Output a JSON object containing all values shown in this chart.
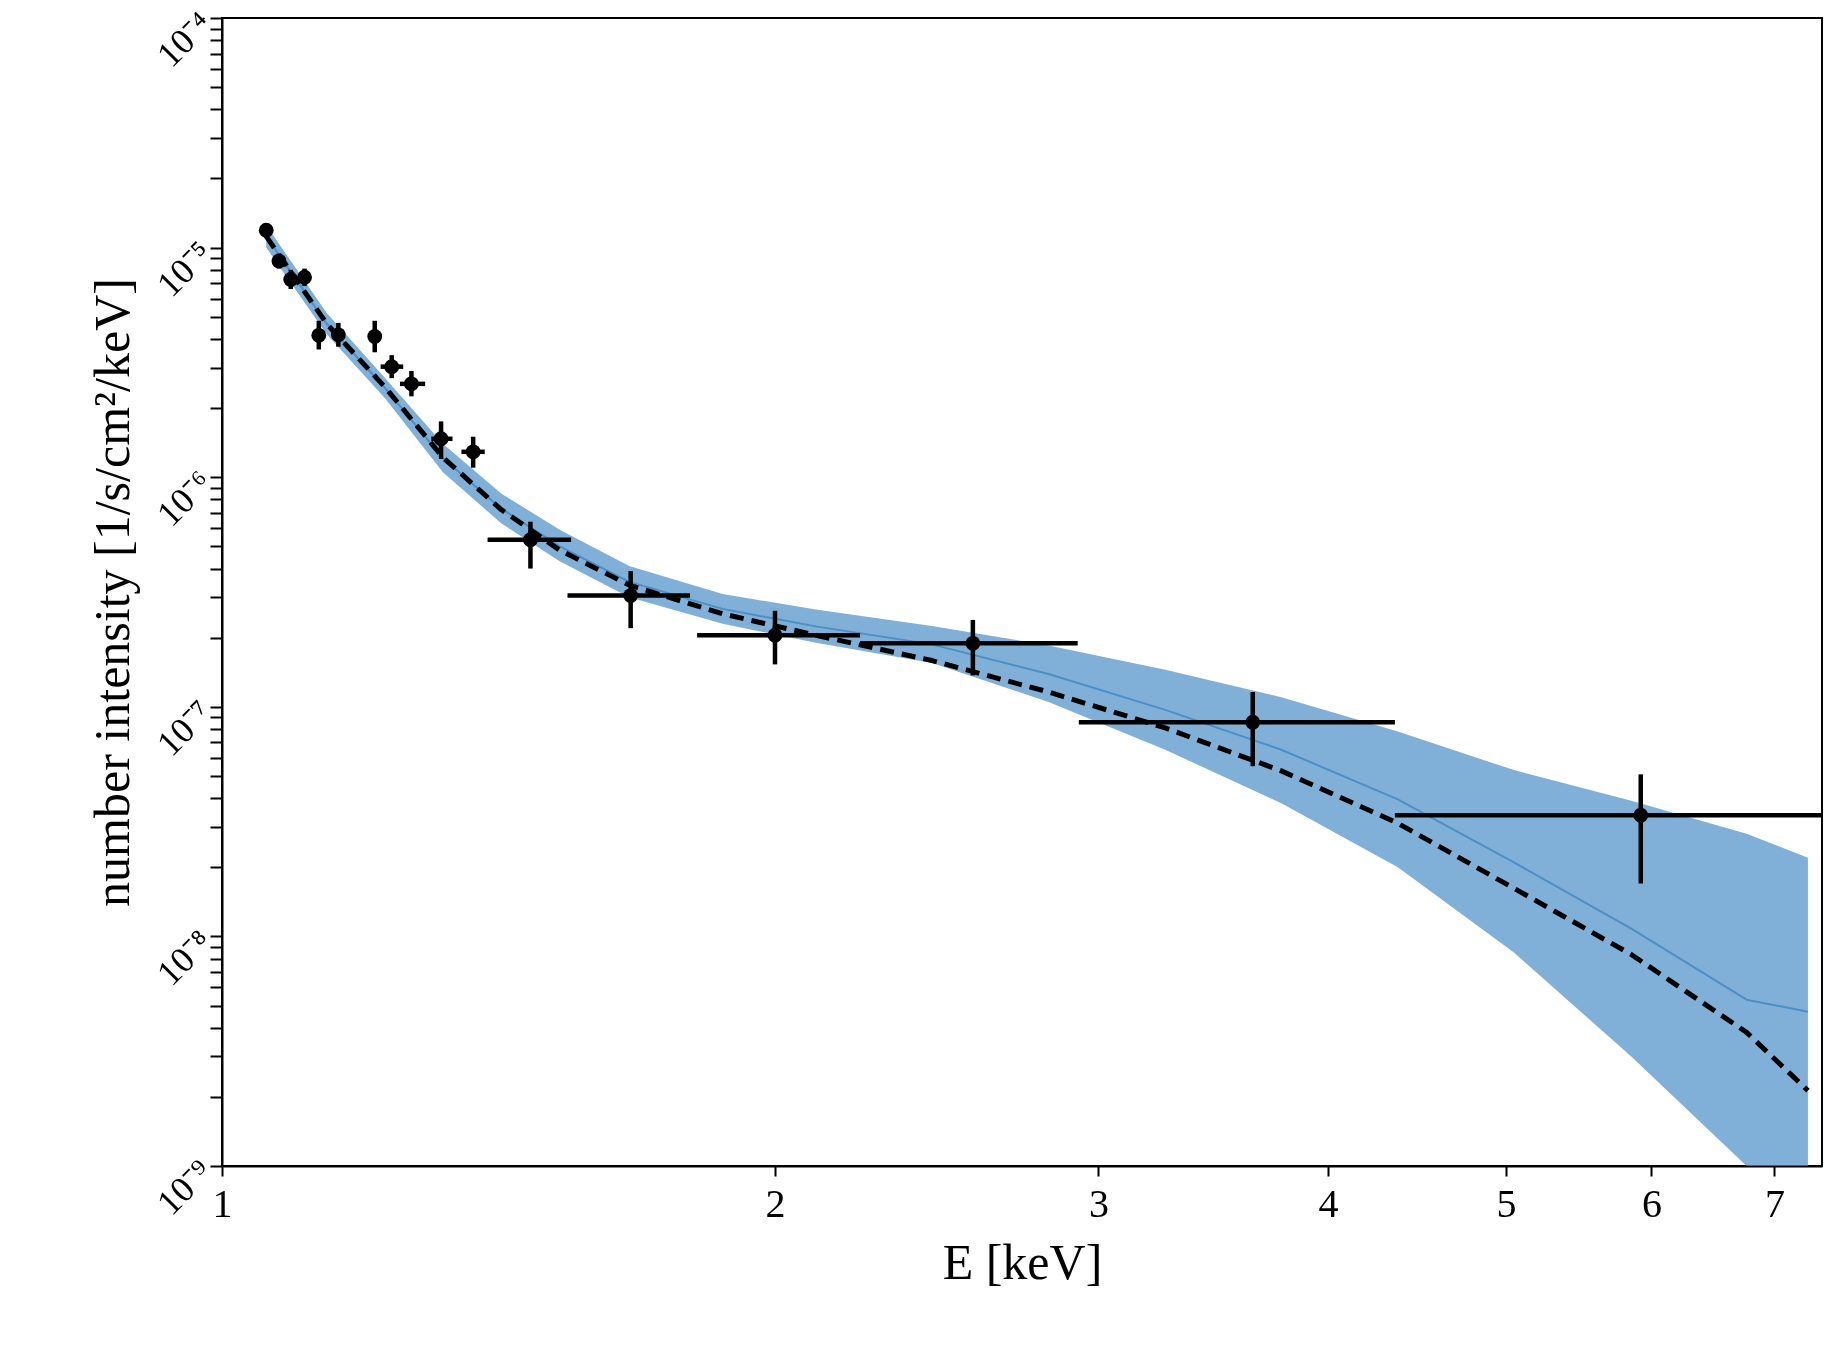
{
  "chart_data": {
    "type": "scatter",
    "xlabel": "E [keV]",
    "ylabel": "number intensity [1/s/cm²/keV]",
    "log": "xy",
    "xlim": [
      1,
      7.43
    ],
    "xticks": [
      1,
      2,
      3,
      4,
      5,
      6,
      7
    ],
    "ylim": [
      1e-09,
      0.0001
    ],
    "yticks": [
      {
        "value": 1e-09,
        "label": "10⁻⁹"
      },
      {
        "value": 2e-09,
        "label": null
      },
      {
        "value": 3e-09,
        "label": null
      },
      {
        "value": 4e-09,
        "label": null
      },
      {
        "value": 5e-09,
        "label": null
      },
      {
        "value": 6e-09,
        "label": null
      },
      {
        "value": 7e-09,
        "label": null
      },
      {
        "value": 8e-09,
        "label": null
      },
      {
        "value": 9e-09,
        "label": null
      },
      {
        "value": 1e-08,
        "label": "10⁻⁸"
      },
      {
        "value": 2e-08,
        "label": null
      },
      {
        "value": 3e-08,
        "label": null
      },
      {
        "value": 4e-08,
        "label": null
      },
      {
        "value": 5e-08,
        "label": null
      },
      {
        "value": 6e-08,
        "label": null
      },
      {
        "value": 7e-08,
        "label": null
      },
      {
        "value": 8e-08,
        "label": null
      },
      {
        "value": 9e-08,
        "label": null
      },
      {
        "value": 1e-07,
        "label": "10⁻⁷"
      },
      {
        "value": 2e-07,
        "label": null
      },
      {
        "value": 3e-07,
        "label": null
      },
      {
        "value": 4e-07,
        "label": null
      },
      {
        "value": 5e-07,
        "label": null
      },
      {
        "value": 6e-07,
        "label": null
      },
      {
        "value": 7e-07,
        "label": null
      },
      {
        "value": 8e-07,
        "label": null
      },
      {
        "value": 9e-07,
        "label": null
      },
      {
        "value": 1e-06,
        "label": "10⁻⁶"
      },
      {
        "value": 2e-06,
        "label": null
      },
      {
        "value": 3e-06,
        "label": null
      },
      {
        "value": 4e-06,
        "label": null
      },
      {
        "value": 5e-06,
        "label": null
      },
      {
        "value": 6e-06,
        "label": null
      },
      {
        "value": 7e-06,
        "label": null
      },
      {
        "value": 8e-06,
        "label": null
      },
      {
        "value": 9e-06,
        "label": null
      },
      {
        "value": 1e-05,
        "label": "10⁻⁵"
      },
      {
        "value": 2e-05,
        "label": null
      },
      {
        "value": 3e-05,
        "label": null
      },
      {
        "value": 4e-05,
        "label": null
      },
      {
        "value": 5e-05,
        "label": null
      },
      {
        "value": 6e-05,
        "label": null
      },
      {
        "value": 7e-05,
        "label": null
      },
      {
        "value": 8e-05,
        "label": null
      },
      {
        "value": 9e-05,
        "label": null
      },
      {
        "value": 0.0001,
        "label": "10⁻⁴"
      }
    ],
    "series": [
      {
        "type": "line",
        "color": "#4a8fc6",
        "x": [
          1.057,
          1.14,
          1.227,
          1.319,
          1.419,
          1.527,
          1.666,
          1.873,
          2.105,
          2.435,
          2.818,
          3.262,
          3.773,
          4.366,
          5.05,
          5.85,
          6.76,
          7.3
        ],
        "values": [
          1.12e-05,
          4.67e-06,
          2.44e-06,
          1.21e-06,
          7.3e-07,
          5e-07,
          3.5e-07,
          2.67e-07,
          2.24e-07,
          1.87e-07,
          1.39e-07,
          9.7e-08,
          6.5e-08,
          3.95e-08,
          2.1e-08,
          1.08e-08,
          5.3e-09,
          4.7e-09
        ],
        "lower": [
          1e-05,
          4.2e-06,
          2.2e-06,
          1.05e-06,
          6.3e-07,
          4.3e-07,
          3e-07,
          2.3e-07,
          1.9e-07,
          1.55e-07,
          1.05e-07,
          6.5e-08,
          3.8e-08,
          2e-08,
          8.5e-09,
          3e-09,
          1e-09,
          1e-09
        ],
        "upper": [
          1.25e-05,
          5.2e-06,
          2.7e-06,
          1.4e-06,
          8.5e-07,
          5.9e-07,
          4.1e-07,
          3.1e-07,
          2.65e-07,
          2.25e-07,
          1.85e-07,
          1.45e-07,
          1.1e-07,
          7.8e-08,
          5.3e-08,
          3.9e-08,
          2.8e-08,
          2.2e-08
        ]
      },
      {
        "type": "line",
        "color": "#000000",
        "line_style": "dashed",
        "x": [
          1.057,
          1.14,
          1.227,
          1.319,
          1.419,
          1.527,
          1.666,
          1.873,
          2.105,
          2.435,
          2.818,
          3.262,
          3.773,
          4.366,
          5.05,
          5.85,
          6.76,
          7.3
        ],
        "values": [
          1.12e-05,
          4.67e-06,
          2.46e-06,
          1.22e-06,
          7.23e-07,
          4.81e-07,
          3.39e-07,
          2.54e-07,
          2.05e-07,
          1.59e-07,
          1.16e-07,
          8.09e-08,
          5.26e-08,
          3.11e-08,
          1.62e-08,
          8.34e-09,
          3.82e-09,
          2.13e-09
        ]
      },
      {
        "color": "#000000",
        "marker": "circle",
        "x": [
          1.057,
          1.074,
          1.09,
          1.109,
          1.129,
          1.157,
          1.211,
          1.237,
          1.268,
          1.316,
          1.37,
          1.472,
          1.669,
          2.0,
          2.563,
          3.64,
          5.92
        ],
        "values": [
          1.19e-05,
          8.75e-06,
          7.27e-06,
          7.43e-06,
          4.15e-06,
          4.17e-06,
          4.1e-06,
          3.03e-06,
          2.55e-06,
          1.47e-06,
          1.29e-06,
          5.34e-07,
          3.05e-07,
          2.05e-07,
          1.89e-07,
          8.57e-08,
          3.37e-08
        ],
        "errors": [
          [
            1.1e-05,
            1.27e-05
          ],
          [
            8.1e-06,
            9.4e-06
          ],
          [
            6.6e-06,
            8e-06
          ],
          [
            6.8e-06,
            8.1e-06
          ],
          [
            3.6e-06,
            4.8e-06
          ],
          [
            3.7e-06,
            4.7e-06
          ],
          [
            3.5e-06,
            4.8e-06
          ],
          [
            2.7e-06,
            3.4e-06
          ],
          [
            2.25e-06,
            2.9e-06
          ],
          [
            1.2e-06,
            1.75e-06
          ],
          [
            1.1e-06,
            1.5e-06
          ],
          [
            4e-07,
            6.4e-07
          ],
          [
            2.2e-07,
            3.9e-07
          ],
          [
            1.53e-07,
            2.62e-07
          ],
          [
            1.37e-07,
            2.39e-07
          ],
          [
            5.51e-08,
            1.16e-07
          ],
          [
            1.7e-08,
            5.08e-08
          ]
        ],
        "xerrors": [
          null,
          null,
          null,
          null,
          null,
          null,
          null,
          [
            1.22,
            1.255
          ],
          [
            1.25,
            1.29
          ],
          [
            1.3,
            1.335
          ],
          [
            1.35,
            1.39
          ],
          [
            1.395,
            1.549
          ],
          [
            1.542,
            1.798
          ],
          [
            1.814,
            2.225
          ],
          [
            2.225,
            2.923
          ],
          [
            2.927,
            4.35
          ],
          [
            4.35,
            7.43
          ]
        ]
      }
    ]
  }
}
